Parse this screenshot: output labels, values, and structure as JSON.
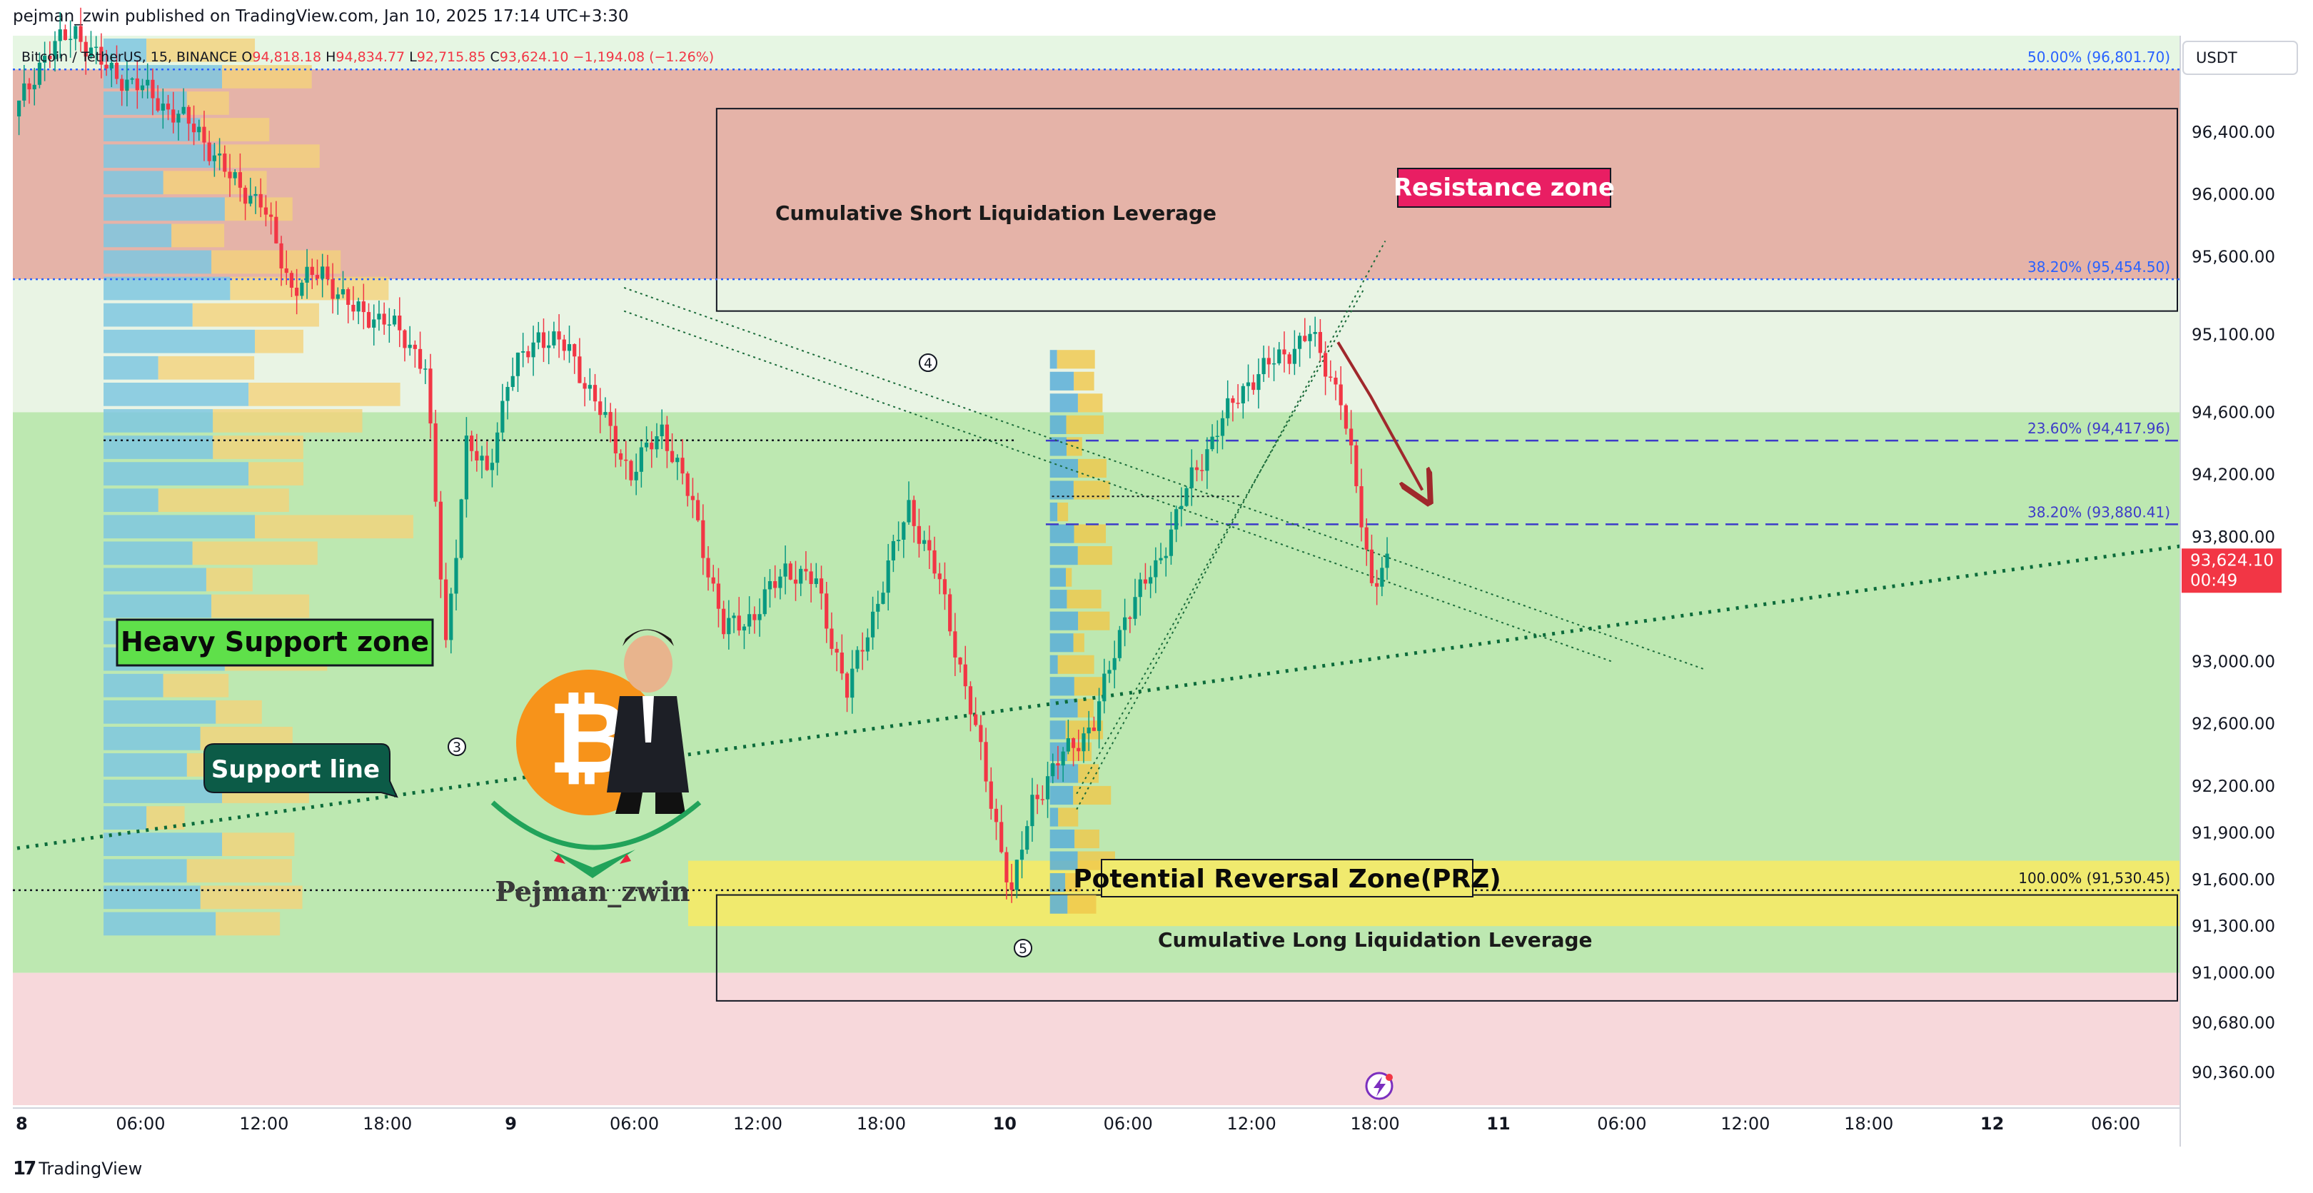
{
  "header": {
    "published": "pejman_zwin published on TradingView.com, Jan 10, 2025 17:14 UTC+3:30",
    "symbol": "Bitcoin / TetherUS, 15, BINANCE",
    "o_label": "O",
    "o_value": "94,818.18",
    "h_label": "H",
    "h_value": "94,834.77",
    "l_label": "L",
    "l_value": "92,715.85",
    "c_label": "C",
    "c_value": "93,624.10",
    "change": "−1,194.08 (−1.26%)"
  },
  "footer": {
    "logo": "17",
    "brand": "TradingView"
  },
  "price_scale": {
    "currency": "USDT",
    "ticks": [
      {
        "label": "96,400.00",
        "v": 96400
      },
      {
        "label": "96,000.00",
        "v": 96000
      },
      {
        "label": "95,600.00",
        "v": 95600
      },
      {
        "label": "95,100.00",
        "v": 95100
      },
      {
        "label": "94,600.00",
        "v": 94600
      },
      {
        "label": "94,200.00",
        "v": 94200
      },
      {
        "label": "93,800.00",
        "v": 93800
      },
      {
        "label": "93,000.00",
        "v": 93000
      },
      {
        "label": "92,600.00",
        "v": 92600
      },
      {
        "label": "92,200.00",
        "v": 92200
      },
      {
        "label": "91,900.00",
        "v": 91900
      },
      {
        "label": "91,600.00",
        "v": 91600
      },
      {
        "label": "91,300.00",
        "v": 91300
      },
      {
        "label": "91,000.00",
        "v": 91000
      },
      {
        "label": "90,680.00",
        "v": 90680
      },
      {
        "label": "90,360.00",
        "v": 90360
      }
    ],
    "current_price": "93,624.10",
    "countdown": "00:49"
  },
  "time_axis": {
    "ticks": [
      {
        "label": "8",
        "t": 0,
        "bold": true
      },
      {
        "label": "06:00",
        "t": 6
      },
      {
        "label": "12:00",
        "t": 12
      },
      {
        "label": "18:00",
        "t": 18
      },
      {
        "label": "9",
        "t": 24,
        "bold": true
      },
      {
        "label": "06:00",
        "t": 30
      },
      {
        "label": "12:00",
        "t": 36
      },
      {
        "label": "18:00",
        "t": 42
      },
      {
        "label": "10",
        "t": 48,
        "bold": true
      },
      {
        "label": "06:00",
        "t": 54
      },
      {
        "label": "12:00",
        "t": 60
      },
      {
        "label": "18:00",
        "t": 66
      },
      {
        "label": "11",
        "t": 72,
        "bold": true
      },
      {
        "label": "06:00",
        "t": 78
      },
      {
        "label": "12:00",
        "t": 84
      },
      {
        "label": "18:00",
        "t": 90
      },
      {
        "label": "12",
        "t": 96,
        "bold": true
      },
      {
        "label": "06:00",
        "t": 102
      }
    ]
  },
  "fib_levels": [
    {
      "label": "50.00% (96,801.70)",
      "v": 96801.7,
      "color": "#2962ff",
      "style": "dotted"
    },
    {
      "label": "38.20% (95,454.50)",
      "v": 95454.5,
      "color": "#2962ff",
      "style": "dotted"
    },
    {
      "label": "23.60% (94,417.96)",
      "v": 94417.96,
      "color": "#3d3bc9",
      "style": "dashed"
    },
    {
      "label": "38.20% (93,880.41)",
      "v": 93880.41,
      "color": "#3d3bc9",
      "style": "dashed"
    },
    {
      "label": "100.00% (91,530.45)",
      "v": 91530.45,
      "color": "#131722",
      "style": "dotted"
    }
  ],
  "annotations": {
    "resistance": "Resistance zone",
    "heavy_support": "Heavy Support zone",
    "support_line": "Support line",
    "prz": "Potential Reversal Zone(PRZ)",
    "short_liq": "Cumulative Short Liquidation Leverage",
    "long_liq": "Cumulative Long Liquidation Leverage",
    "wave3": "3",
    "wave4": "4",
    "wave5": "5",
    "author": "Pejman_zwin"
  },
  "chart_data": {
    "type": "candlestick",
    "symbol": "Bitcoin / TetherUS",
    "interval": "15",
    "exchange": "BINANCE",
    "x_unit": "hours since Jan 8 00:00",
    "xlim": [
      0,
      105
    ],
    "ylim": [
      90150,
      97000
    ],
    "price_path": [
      [
        0.0,
        96500
      ],
      [
        1.5,
        96900
      ],
      [
        3.0,
        97050
      ],
      [
        4.5,
        96800
      ],
      [
        6.0,
        96700
      ],
      [
        7.5,
        96550
      ],
      [
        9.0,
        96400
      ],
      [
        10.5,
        96100
      ],
      [
        12.0,
        95950
      ],
      [
        13.5,
        95400
      ],
      [
        15.0,
        95500
      ],
      [
        16.5,
        95250
      ],
      [
        18.0,
        95200
      ],
      [
        19.5,
        95000
      ],
      [
        20.0,
        94900
      ],
      [
        21.0,
        93100
      ],
      [
        22.0,
        94400
      ],
      [
        23.0,
        94200
      ],
      [
        24.0,
        94800
      ],
      [
        25.5,
        95100
      ],
      [
        27.0,
        95000
      ],
      [
        28.5,
        94600
      ],
      [
        30.0,
        94200
      ],
      [
        31.5,
        94500
      ],
      [
        33.0,
        94000
      ],
      [
        34.5,
        93200
      ],
      [
        36.0,
        93300
      ],
      [
        37.5,
        93600
      ],
      [
        39.0,
        93500
      ],
      [
        40.5,
        92800
      ],
      [
        42.0,
        93400
      ],
      [
        43.5,
        94000
      ],
      [
        45.0,
        93500
      ],
      [
        46.5,
        92700
      ],
      [
        48.0,
        91800
      ],
      [
        48.5,
        91500
      ],
      [
        49.5,
        92100
      ],
      [
        51.0,
        92400
      ],
      [
        52.5,
        92600
      ],
      [
        54.0,
        93300
      ],
      [
        55.5,
        93600
      ],
      [
        57.0,
        94100
      ],
      [
        58.5,
        94500
      ],
      [
        60.0,
        94800
      ],
      [
        61.5,
        94950
      ],
      [
        63.0,
        95100
      ],
      [
        64.5,
        94700
      ],
      [
        66.0,
        93500
      ],
      [
        66.5,
        93624.1
      ]
    ],
    "fib_levels": [
      {
        "pct": 50.0,
        "value": 96801.7
      },
      {
        "pct": 38.2,
        "value": 95454.5
      },
      {
        "pct": 23.6,
        "value": 94417.96
      },
      {
        "pct": 38.2,
        "value": 93880.41
      },
      {
        "pct": 100.0,
        "value": 91530.45
      }
    ],
    "zones": [
      {
        "name": "Resistance zone",
        "from": 95454.5,
        "to": 96801.7,
        "color": "#e8a59a"
      },
      {
        "name": "Heavy Support zone",
        "from": 91000,
        "to": 94600,
        "color": "#9fe38e"
      },
      {
        "name": "Potential Reversal Zone(PRZ)",
        "from": 91300,
        "to": 91720,
        "color": "#f2ea78"
      }
    ],
    "current_price": 93624.1,
    "countdown": "00:49",
    "currency": "USDT"
  },
  "colors": {
    "up": "#089981",
    "down": "#f23645",
    "resistance_fill": "#e5b3a8",
    "support_fill": "#bde8b1",
    "prz_fill": "#f0ea6e",
    "price_tag": "#f23645",
    "support_label": "#0c5b47"
  }
}
